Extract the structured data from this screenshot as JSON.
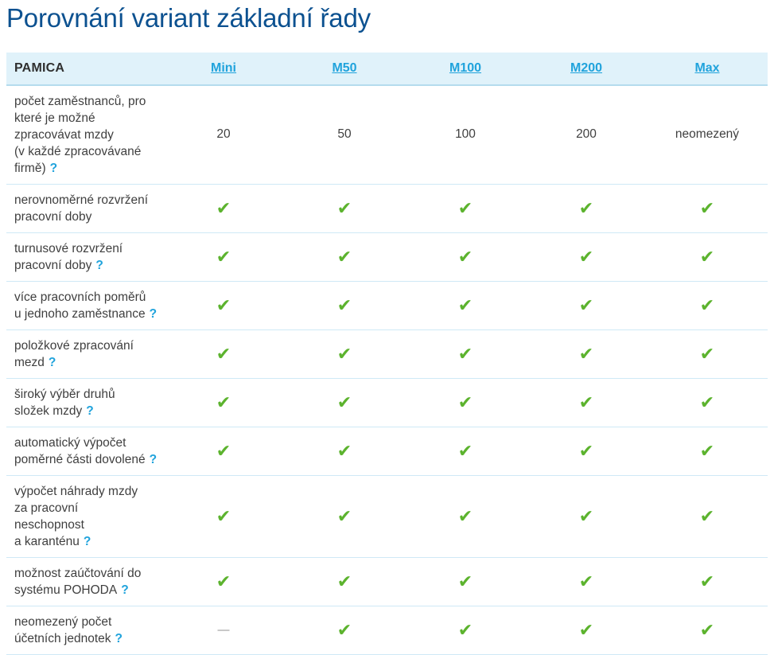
{
  "title": "Porovnání variant základní řady",
  "icons": {
    "check": "✔",
    "dash": "—",
    "help": "?"
  },
  "colors": {
    "title_blue": "#0c5190",
    "link_blue": "#20a3dc",
    "header_bg": "#e0f2fa",
    "row_border": "#cfe9f6",
    "check_green": "#5cb32e",
    "text": "#3f3f3f"
  },
  "table": {
    "product": "PAMICA",
    "columns": [
      "Mini",
      "M50",
      "M100",
      "M200",
      "Max"
    ],
    "rows": [
      {
        "label": "počet zaměstnanců, pro\nkteré je možné\nzpracovávat mzdy\n(v každé zpracovávané\nfirmě)",
        "help": "?",
        "cells": [
          "20",
          "50",
          "100",
          "200",
          "neomezený"
        ]
      },
      {
        "label": "nerovnoměrné rozvržení\npracovní doby",
        "help": "",
        "cells": [
          "check",
          "check",
          "check",
          "check",
          "check"
        ]
      },
      {
        "label": "turnusové rozvržení\npracovní doby",
        "help": "?",
        "cells": [
          "check",
          "check",
          "check",
          "check",
          "check"
        ]
      },
      {
        "label": "více pracovních poměrů\nu jednoho zaměstnance",
        "help": "?",
        "cells": [
          "check",
          "check",
          "check",
          "check",
          "check"
        ]
      },
      {
        "label": "položkové zpracování\nmezd",
        "help": "?",
        "cells": [
          "check",
          "check",
          "check",
          "check",
          "check"
        ]
      },
      {
        "label": "široký výběr druhů\nsložek mzdy",
        "help": "?",
        "cells": [
          "check",
          "check",
          "check",
          "check",
          "check"
        ]
      },
      {
        "label": "automatický výpočet\npoměrné části dovolené",
        "help": "?",
        "cells": [
          "check",
          "check",
          "check",
          "check",
          "check"
        ]
      },
      {
        "label": "výpočet náhrady mzdy\nza pracovní\nneschopnost\na karanténu",
        "help": "?",
        "cells": [
          "check",
          "check",
          "check",
          "check",
          "check"
        ]
      },
      {
        "label": "možnost zaúčtování do\nsystému POHODA",
        "help": "?",
        "cells": [
          "check",
          "check",
          "check",
          "check",
          "check"
        ]
      },
      {
        "label": "neomezený počet\núčetních jednotek",
        "help": "?",
        "cells": [
          "dash",
          "check",
          "check",
          "check",
          "check"
        ]
      }
    ]
  }
}
